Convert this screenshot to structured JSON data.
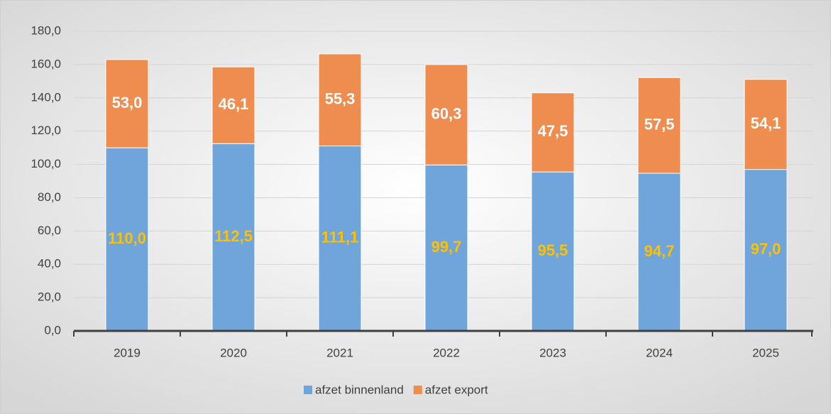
{
  "chart_data": {
    "type": "stacked_bar",
    "categories": [
      "2019",
      "2020",
      "2021",
      "2022",
      "2023",
      "2024",
      "2025"
    ],
    "series": [
      {
        "name": "afzet binnenland",
        "color": "#6fa5da",
        "label_color": "#ffc000",
        "values": [
          110.0,
          112.5,
          111.1,
          99.7,
          95.5,
          94.7,
          97.0
        ],
        "value_labels": [
          "110,0",
          "112,5",
          "111,1",
          "99,7",
          "95,5",
          "94,7",
          "97,0"
        ]
      },
      {
        "name": "afzet export",
        "color": "#ee8d4f",
        "label_color": "#ffffff",
        "values": [
          53.0,
          46.1,
          55.3,
          60.3,
          47.5,
          57.5,
          54.1
        ],
        "value_labels": [
          "53,0",
          "46,1",
          "55,3",
          "60,3",
          "47,5",
          "57,5",
          "54,1"
        ]
      }
    ],
    "ylim": [
      0,
      180
    ],
    "yticks": [
      {
        "value": 0,
        "label": "0,0"
      },
      {
        "value": 20,
        "label": "20,0"
      },
      {
        "value": 40,
        "label": "40,0"
      },
      {
        "value": 60,
        "label": "60,0"
      },
      {
        "value": 80,
        "label": "80,0"
      },
      {
        "value": 100,
        "label": "100,0"
      },
      {
        "value": 120,
        "label": "120,0"
      },
      {
        "value": 140,
        "label": "140,0"
      },
      {
        "value": 160,
        "label": "160,0"
      },
      {
        "value": 180,
        "label": "180,0"
      }
    ],
    "grid": true,
    "legend": "bottom"
  }
}
